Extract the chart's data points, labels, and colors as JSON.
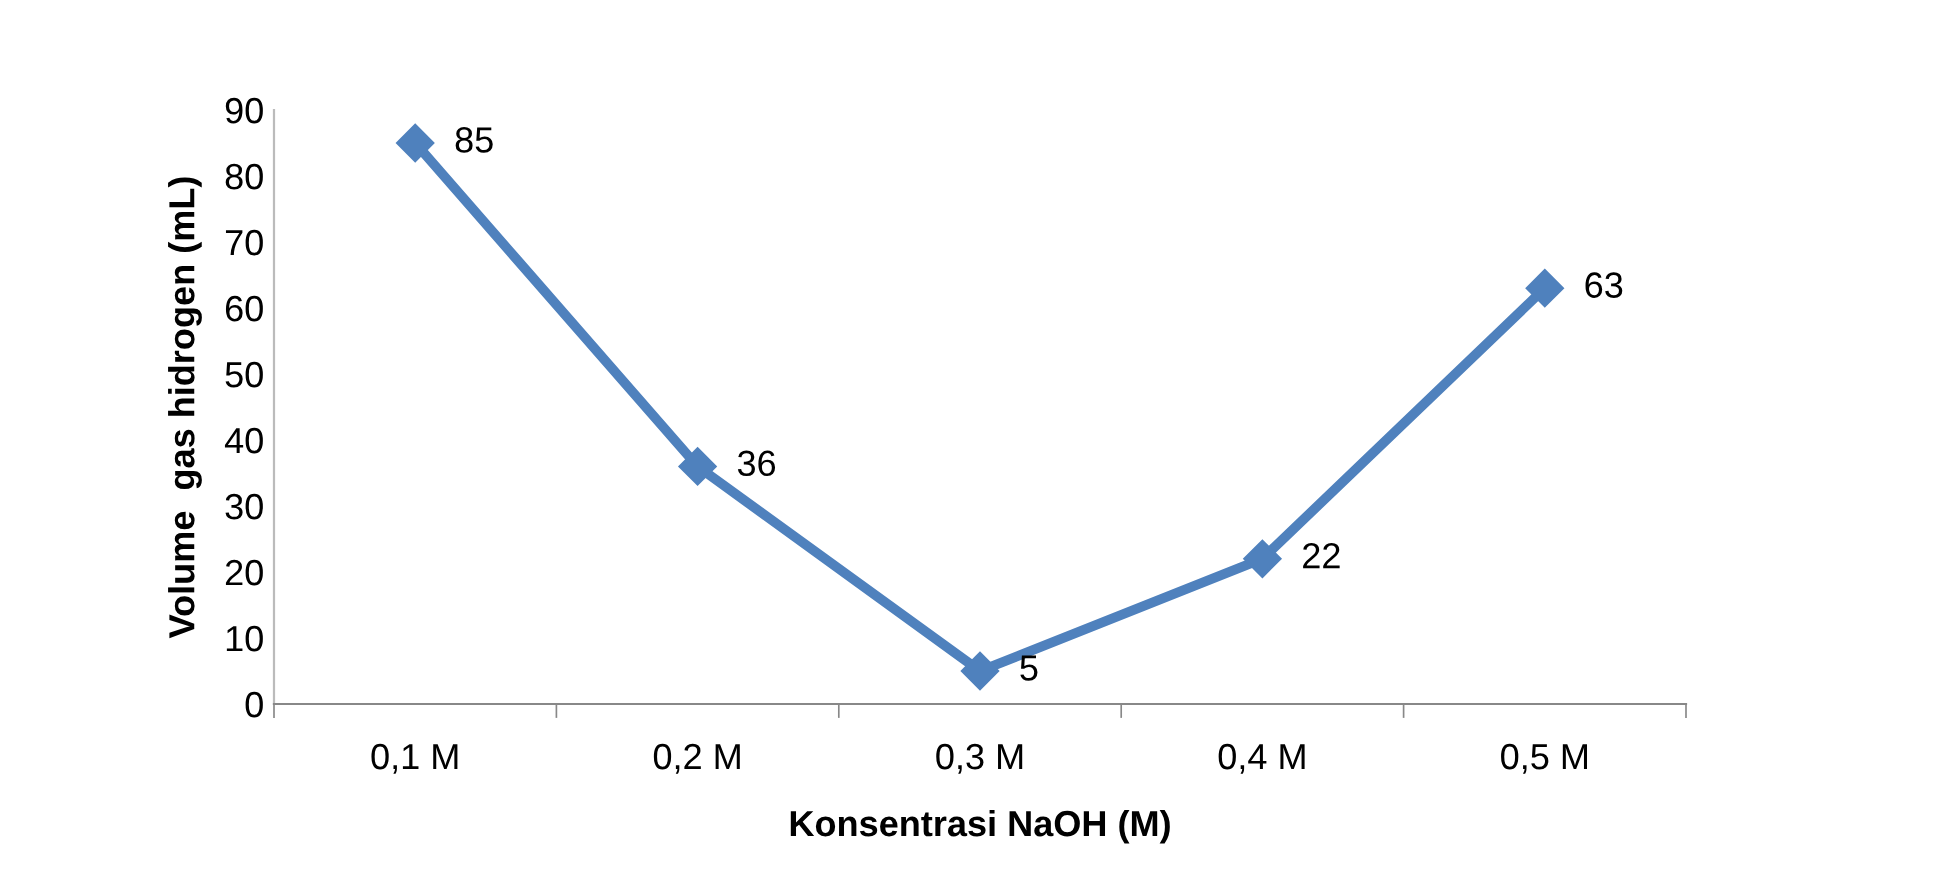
{
  "chart_data": {
    "type": "line",
    "xlabel": "Konsentrasi NaOH (M)",
    "ylabel": "Volume  gas hidrogen (mL)",
    "categories": [
      "0,1 M",
      "0,2 M",
      "0,3 M",
      "0,4 M",
      "0,5 M"
    ],
    "series": [
      {
        "color": "#4f81bd",
        "values": [
          85,
          36,
          5,
          22,
          63
        ]
      }
    ],
    "ylim": [
      0,
      90
    ],
    "yticks": [
      0,
      10,
      20,
      30,
      40,
      50,
      60,
      70,
      80,
      90
    ],
    "marker": "diamond",
    "line_style": "solid",
    "data_labels": true,
    "grid": false,
    "legend": false
  }
}
